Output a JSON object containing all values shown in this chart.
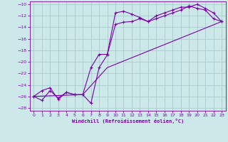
{
  "xlabel": "Windchill (Refroidissement éolien,°C)",
  "background_color": "#cce8e8",
  "grid_color": "#aacccc",
  "line_color": "#7700aa",
  "xlim": [
    -0.5,
    23.5
  ],
  "ylim": [
    -28.5,
    -9.5
  ],
  "xticks": [
    0,
    1,
    2,
    3,
    4,
    5,
    6,
    7,
    8,
    9,
    10,
    11,
    12,
    13,
    14,
    15,
    16,
    17,
    18,
    19,
    20,
    21,
    22,
    23
  ],
  "yticks": [
    -28,
    -26,
    -24,
    -22,
    -20,
    -18,
    -16,
    -14,
    -12,
    -10
  ],
  "line1_x": [
    0,
    1,
    2,
    3,
    4,
    5,
    6,
    7,
    8,
    9,
    10,
    11,
    12,
    13,
    14,
    15,
    16,
    17,
    18,
    19,
    20,
    21,
    22,
    23
  ],
  "line1_y": [
    -26.0,
    -26.7,
    -25.0,
    -26.3,
    -25.3,
    -25.7,
    -25.7,
    -27.2,
    -21.0,
    -18.8,
    -13.5,
    -13.1,
    -13.0,
    -12.5,
    -13.0,
    -12.0,
    -11.5,
    -11.0,
    -10.5,
    -10.5,
    -10.0,
    -10.7,
    -11.5,
    -13.0
  ],
  "line2_x": [
    0,
    1,
    2,
    3,
    4,
    5,
    6,
    7,
    8,
    9,
    10,
    11,
    12,
    13,
    14,
    15,
    16,
    17,
    18,
    19,
    20,
    21,
    22,
    23
  ],
  "line2_y": [
    -26.0,
    -25.0,
    -24.5,
    -26.5,
    -25.3,
    -25.7,
    -25.7,
    -21.0,
    -18.7,
    -18.7,
    -11.5,
    -11.2,
    -11.7,
    -12.3,
    -13.0,
    -12.5,
    -12.0,
    -11.5,
    -11.0,
    -10.3,
    -10.7,
    -11.0,
    -12.5,
    -13.0
  ],
  "line3_x": [
    0,
    6,
    9,
    23
  ],
  "line3_y": [
    -26.0,
    -25.7,
    -21.0,
    -13.0
  ]
}
